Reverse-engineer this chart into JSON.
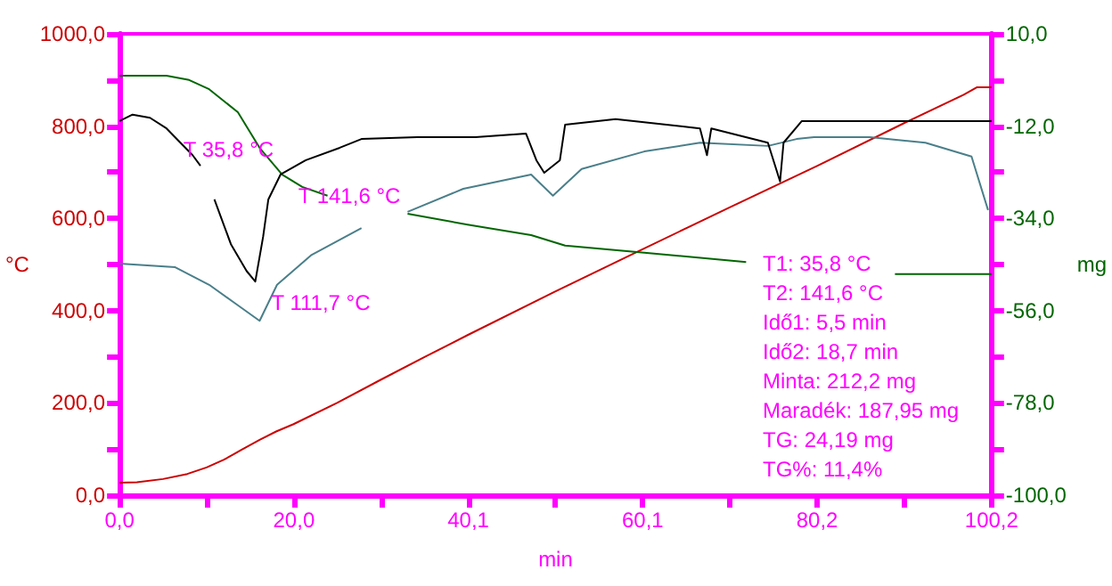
{
  "chart_data": {
    "type": "line",
    "xlabel": "min",
    "ylabel": "°C",
    "y2label": "mg",
    "xlim": [
      0,
      100.2
    ],
    "xticks": [
      {
        "value": 0,
        "label": "0,0"
      },
      {
        "value": 10.02,
        "label": null
      },
      {
        "value": 20.04,
        "label": "20,0"
      },
      {
        "value": 30.06,
        "label": null
      },
      {
        "value": 40.08,
        "label": "40,1"
      },
      {
        "value": 50.1,
        "label": null
      },
      {
        "value": 60.12,
        "label": "60,1"
      },
      {
        "value": 70.14,
        "label": null
      },
      {
        "value": 80.16,
        "label": "80,2"
      },
      {
        "value": 90.18,
        "label": null
      },
      {
        "value": 100.2,
        "label": "100,2"
      }
    ],
    "ylim": [
      0,
      1000
    ],
    "yticks": [
      {
        "value": 0,
        "label": "0,0"
      },
      {
        "value": 100,
        "label": null
      },
      {
        "value": 200,
        "label": "200,0"
      },
      {
        "value": 300,
        "label": null
      },
      {
        "value": 400,
        "label": "400,0"
      },
      {
        "value": 500,
        "label": null
      },
      {
        "value": 600,
        "label": "600,0"
      },
      {
        "value": 700,
        "label": null
      },
      {
        "value": 800,
        "label": "800,0"
      },
      {
        "value": 900,
        "label": null
      },
      {
        "value": 1000,
        "label": "1000,0"
      }
    ],
    "y2lim": [
      -100,
      10
    ],
    "y2ticks": [
      {
        "value": -100,
        "label": "-100,0"
      },
      {
        "value": -89,
        "label": null
      },
      {
        "value": -78,
        "label": "-78,0"
      },
      {
        "value": -67,
        "label": null
      },
      {
        "value": -56,
        "label": "-56,0"
      },
      {
        "value": -45,
        "label": null
      },
      {
        "value": -34,
        "label": "-34,0"
      },
      {
        "value": -23,
        "label": null
      },
      {
        "value": -12,
        "label": "-12,0"
      },
      {
        "value": -1,
        "label": null
      },
      {
        "value": 10,
        "label": "10,0"
      }
    ],
    "series": [
      {
        "color": "#cc0000",
        "x": [
          0,
          2,
          5,
          7.8,
          10,
          12,
          14,
          16.1,
          18,
          20,
          25,
          30,
          35,
          40,
          50,
          60.1,
          70,
          80.2,
          90,
          97,
          98.5,
          100.2
        ],
        "values": [
          27,
          28,
          35,
          46,
          60,
          77,
          98,
          120,
          138,
          154,
          200,
          250,
          299,
          347,
          441,
          533,
          623,
          714,
          805,
          868,
          884,
          884
        ]
      },
      {
        "color": "#006600",
        "axis": "y2",
        "x": [
          0,
          5.4,
          8,
          10.3,
          13.6,
          16.1,
          18.7,
          21,
          23.9,
          28,
          33.1,
          40,
          47.3,
          51.2,
          60.3,
          72,
          80,
          89.1,
          100.2
        ],
        "values": [
          0,
          0,
          -1,
          -3.2,
          -8.7,
          -17.2,
          -23.6,
          -26.5,
          -28.6,
          null,
          -32.9,
          -35.5,
          -38,
          -40.5,
          -42.2,
          -44.4,
          null,
          -47.3,
          -47.3
        ]
      },
      {
        "color": "#4a7f8a",
        "x": [
          0,
          6.4,
          10.3,
          13.2,
          16.1,
          18.1,
          22,
          27.8,
          30,
          33.1,
          39.5,
          47.3,
          49.8,
          53.1,
          60.3,
          66.7,
          74.5,
          77.8,
          79.8,
          86.2,
          92.6,
          97.9,
          99.8
        ],
        "values": [
          502,
          494,
          456,
          417,
          378,
          456,
          520,
          579,
          null,
          614,
          664,
          695,
          649,
          707,
          745,
          764,
          757,
          772,
          776,
          776,
          764,
          734,
          618
        ]
      },
      {
        "color": "#000000",
        "x": [
          0,
          1.5,
          3.5,
          5.4,
          8.4,
          9.3,
          10,
          10.9,
          12.8,
          14.6,
          15.6,
          16.5,
          17.1,
          18.5,
          21.4,
          25.3,
          27.8,
          34.2,
          40.9,
          46.7,
          47.9,
          48.8,
          50.6,
          51.2,
          57,
          66.7,
          67.5,
          68,
          74.5,
          75.9,
          76.3,
          78.4,
          86.2,
          99.2,
          100.2
        ],
        "values": [
          811,
          825,
          818,
          795,
          737,
          714,
          null,
          641,
          544,
          486,
          463,
          560,
          641,
          695,
          726,
          753,
          772,
          776,
          776,
          784,
          726,
          699,
          726,
          803,
          815,
          795,
          737,
          795,
          764,
          680,
          764,
          811,
          811,
          811,
          811
        ]
      }
    ],
    "annotations": [
      {
        "text": "T 35,8 °C",
        "x": 5.5,
        "y": 795
      },
      {
        "text": "T 141,6 °C",
        "x": 18.7,
        "y": 695
      },
      {
        "text": "T 111,7 °C",
        "x": 15.6,
        "y": 463
      },
      "T1: 35,8 °C",
      "T2: 141,6 °C",
      "Idő1: 5,5 min",
      "Idő2: 18,7 min",
      "Minta: 212,2 mg",
      "Maradék: 187,95 mg",
      "TG: 24,19 mg",
      "TG%: 11,4%"
    ]
  }
}
